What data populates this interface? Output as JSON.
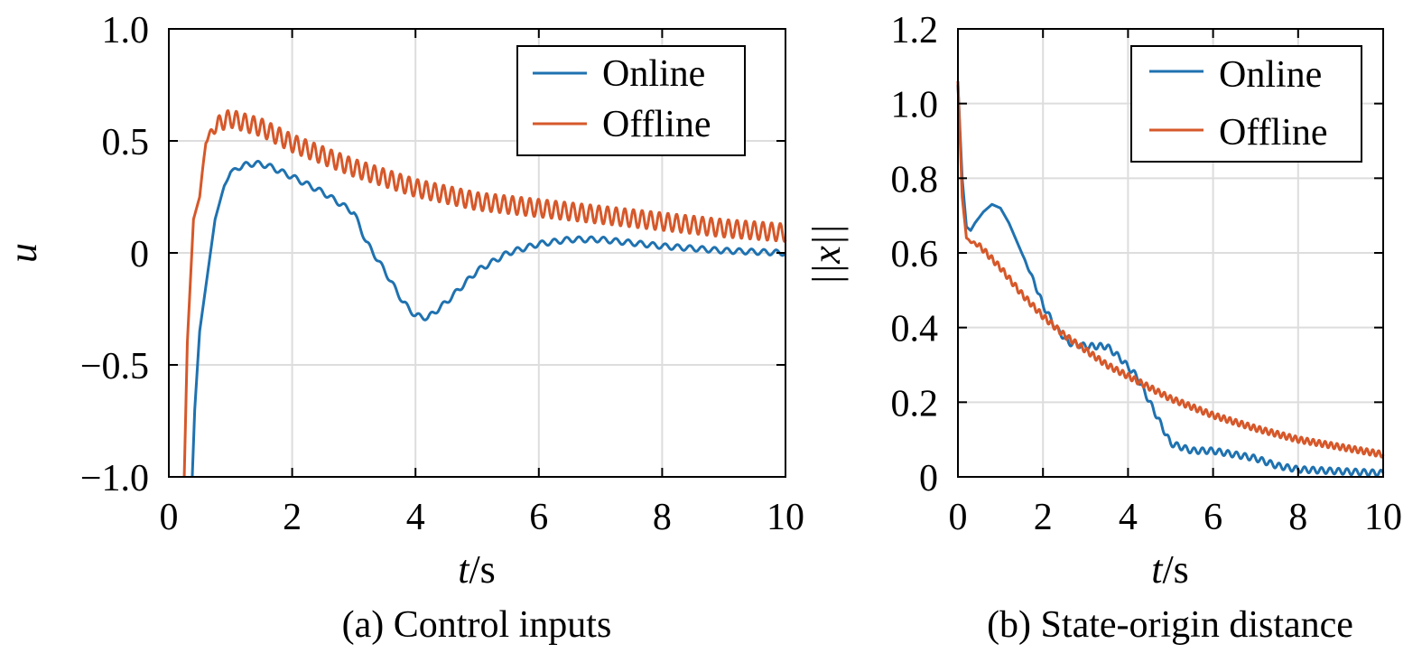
{
  "colors": {
    "online": "#1f72b0",
    "offline": "#d6582a",
    "grid": "#dddddd",
    "axis": "#000000"
  },
  "chart_data": [
    {
      "type": "line",
      "caption": "(a) Control inputs",
      "xlabel_italic": "t",
      "xlabel_unit": "/s",
      "ylabel": "u",
      "xlim": [
        0,
        10
      ],
      "ylim": [
        -1.0,
        1.0
      ],
      "xticks": [
        0,
        2,
        4,
        6,
        8,
        10
      ],
      "xtick_labels": [
        "0",
        "2",
        "4",
        "6",
        "8",
        "10"
      ],
      "yticks": [
        -1.0,
        -0.5,
        0,
        0.5,
        1.0
      ],
      "ytick_labels": [
        "−1.0",
        "−0.5",
        "0",
        "0.5",
        "1.0"
      ],
      "legend": {
        "position": "top-right",
        "entries": [
          "Online",
          "Offline"
        ]
      },
      "series": [
        {
          "name": "Online",
          "osc_amp": 0.012,
          "osc_period": 0.2,
          "osc_start": 0.8,
          "x": [
            0.38,
            0.42,
            0.5,
            0.6,
            0.75,
            0.9,
            1.0,
            1.2,
            1.4,
            1.6,
            2.0,
            2.5,
            3.0,
            3.2,
            3.5,
            3.8,
            4.0,
            4.2,
            4.5,
            5.0,
            5.5,
            6.0,
            6.5,
            7.0,
            8.0,
            9.0,
            10.0
          ],
          "y": [
            -1.0,
            -0.7,
            -0.35,
            -0.15,
            0.15,
            0.3,
            0.36,
            0.39,
            0.4,
            0.39,
            0.34,
            0.27,
            0.18,
            0.05,
            -0.08,
            -0.22,
            -0.28,
            -0.29,
            -0.22,
            -0.08,
            0.0,
            0.04,
            0.06,
            0.06,
            0.03,
            0.01,
            0.0
          ]
        },
        {
          "name": "Offline",
          "osc_amp": 0.04,
          "osc_period": 0.14,
          "osc_start": 0.5,
          "x": [
            0.25,
            0.3,
            0.4,
            0.5,
            0.6,
            0.8,
            1.0,
            1.5,
            2.0,
            3.0,
            4.0,
            5.0,
            6.0,
            7.0,
            8.0,
            9.0,
            10.0
          ],
          "y": [
            -1.0,
            -0.4,
            0.15,
            0.25,
            0.5,
            0.58,
            0.6,
            0.56,
            0.49,
            0.38,
            0.29,
            0.23,
            0.2,
            0.17,
            0.14,
            0.11,
            0.09
          ]
        }
      ]
    },
    {
      "type": "line",
      "caption": "(b) State-origin distance",
      "xlabel_italic": "t",
      "xlabel_unit": "/s",
      "ylabel": "||x||",
      "xlim": [
        0,
        10
      ],
      "ylim": [
        0,
        1.2
      ],
      "xticks": [
        0,
        2,
        4,
        6,
        8,
        10
      ],
      "xtick_labels": [
        "0",
        "2",
        "4",
        "6",
        "8",
        "10"
      ],
      "yticks": [
        0,
        0.2,
        0.4,
        0.6,
        0.8,
        1.0,
        1.2
      ],
      "ytick_labels": [
        "0",
        "0.2",
        "0.4",
        "0.6",
        "0.8",
        "1.0",
        "1.2"
      ],
      "legend": {
        "position": "top-right",
        "entries": [
          "Online",
          "Offline"
        ]
      },
      "series": [
        {
          "name": "Online",
          "osc_amp": 0.008,
          "osc_period": 0.2,
          "osc_start": 1.5,
          "x": [
            0.0,
            0.1,
            0.2,
            0.3,
            0.4,
            0.6,
            0.8,
            1.0,
            1.2,
            1.5,
            1.8,
            2.0,
            2.3,
            2.6,
            3.0,
            3.5,
            3.8,
            4.2,
            4.6,
            5.0,
            5.5,
            6.0,
            6.5,
            7.0,
            7.5,
            8.0,
            9.0,
            10.0
          ],
          "y": [
            1.05,
            0.8,
            0.67,
            0.66,
            0.68,
            0.71,
            0.73,
            0.72,
            0.68,
            0.6,
            0.52,
            0.46,
            0.4,
            0.36,
            0.35,
            0.35,
            0.32,
            0.27,
            0.18,
            0.09,
            0.07,
            0.07,
            0.06,
            0.05,
            0.03,
            0.02,
            0.015,
            0.01
          ]
        },
        {
          "name": "Offline",
          "osc_amp": 0.008,
          "osc_period": 0.14,
          "osc_start": 0.2,
          "x": [
            0.0,
            0.1,
            0.2,
            0.3,
            0.5,
            1.0,
            1.5,
            2.0,
            2.5,
            3.0,
            3.5,
            4.0,
            5.0,
            6.0,
            7.0,
            8.0,
            9.0,
            10.0
          ],
          "y": [
            1.06,
            0.75,
            0.64,
            0.63,
            0.62,
            0.56,
            0.49,
            0.43,
            0.38,
            0.34,
            0.3,
            0.27,
            0.21,
            0.165,
            0.13,
            0.1,
            0.08,
            0.06
          ]
        }
      ]
    }
  ]
}
